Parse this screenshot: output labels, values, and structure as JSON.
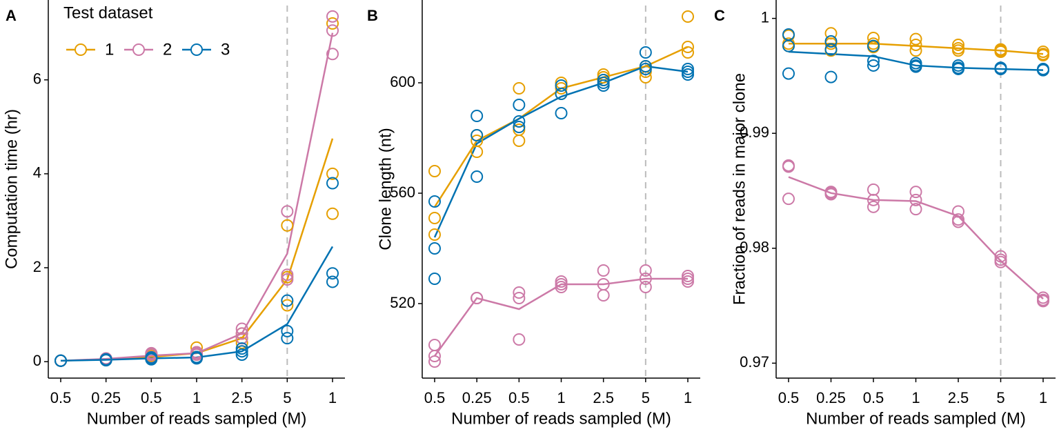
{
  "chart_data": [
    {
      "type": "line",
      "panel_label": "A",
      "legend_title": "Test dataset",
      "categories": [
        "0.5",
        "0.25",
        "0.5",
        "1",
        "2.5",
        "5",
        "1"
      ],
      "xlabel": "Number of reads sampled (M)",
      "ylabel": "Computation time (hr)",
      "ylim": [
        -0.35,
        7.7
      ],
      "yticks": [
        0,
        2,
        4,
        6
      ],
      "vline_index": 5,
      "series": [
        {
          "name": "1",
          "color": "#E69F00",
          "values": [
            0.02,
            0.05,
            0.1,
            0.18,
            0.5,
            1.75,
            4.75
          ],
          "points": [
            [
              0.02,
              0.02,
              0.02
            ],
            [
              0.05,
              0.05,
              0.06
            ],
            [
              0.08,
              0.12,
              0.17
            ],
            [
              0.15,
              0.2,
              0.3
            ],
            [
              0.4,
              0.5,
              0.6
            ],
            [
              1.2,
              1.8,
              2.9
            ],
            [
              3.15,
              4.0,
              7.2
            ]
          ]
        },
        {
          "name": "2",
          "color": "#CC79A7",
          "values": [
            0.02,
            0.06,
            0.13,
            0.18,
            0.6,
            2.3,
            7.0
          ],
          "points": [
            [
              0.02,
              0.02,
              0.02
            ],
            [
              0.05,
              0.06,
              0.07
            ],
            [
              0.1,
              0.15,
              0.18
            ],
            [
              0.15,
              0.18,
              0.2
            ],
            [
              0.5,
              0.6,
              0.7
            ],
            [
              1.75,
              1.85,
              3.2
            ],
            [
              6.55,
              7.05,
              7.35
            ]
          ]
        },
        {
          "name": "3",
          "color": "#0072B2",
          "values": [
            0.02,
            0.04,
            0.07,
            0.09,
            0.22,
            0.8,
            2.45
          ],
          "points": [
            [
              0.02,
              0.02,
              0.02
            ],
            [
              0.03,
              0.04,
              0.05
            ],
            [
              0.05,
              0.07,
              0.09
            ],
            [
              0.07,
              0.09,
              0.1
            ],
            [
              0.15,
              0.22,
              0.28
            ],
            [
              0.5,
              0.65,
              1.3
            ],
            [
              1.7,
              1.88,
              3.8
            ]
          ]
        }
      ]
    },
    {
      "type": "line",
      "panel_label": "B",
      "categories": [
        "0.5",
        "0.25",
        "0.5",
        "1",
        "2.5",
        "5",
        "1"
      ],
      "xlabel": "Number of reads sampled (M)",
      "ylabel": "Clone length (nt)",
      "ylim": [
        493,
        630
      ],
      "yticks": [
        520,
        560,
        600
      ],
      "vline_index": 5,
      "series": [
        {
          "color": "#E69F00",
          "values": [
            555,
            579,
            587,
            598,
            602,
            606,
            613
          ],
          "points": [
            [
              545,
              551,
              568
            ],
            [
              575,
              579,
              581
            ],
            [
              579,
              583,
              598
            ],
            [
              596,
              598,
              600
            ],
            [
              601,
              602,
              603
            ],
            [
              602,
              604,
              606
            ],
            [
              611,
              613,
              624
            ]
          ]
        },
        {
          "color": "#CC79A7",
          "values": [
            501,
            522,
            518,
            527,
            527,
            529,
            529
          ],
          "points": [
            [
              499,
              501,
              505
            ],
            [
              522,
              522,
              522
            ],
            [
              507,
              522,
              524
            ],
            [
              526,
              527,
              528
            ],
            [
              523,
              527,
              532
            ],
            [
              526,
              529,
              532
            ],
            [
              528,
              529,
              530
            ]
          ]
        },
        {
          "color": "#0072B2",
          "values": [
            544,
            578,
            587,
            595,
            600,
            606,
            604
          ],
          "points": [
            [
              529,
              540,
              557
            ],
            [
              566,
              581,
              588
            ],
            [
              584,
              586,
              592
            ],
            [
              589,
              596,
              599
            ],
            [
              599,
              600,
              601
            ],
            [
              605,
              606,
              611
            ],
            [
              603,
              604,
              605
            ]
          ]
        }
      ]
    },
    {
      "type": "line",
      "panel_label": "C",
      "categories": [
        "0.5",
        "0.25",
        "0.5",
        "1",
        "2.5",
        "5",
        "1"
      ],
      "xlabel": "Number of reads sampled (M)",
      "ylabel": "Fraction of reads in major clone",
      "ylim": [
        0.9687,
        1.0016
      ],
      "yticks": [
        0.97,
        0.98,
        0.99,
        1
      ],
      "vline_index": 5,
      "series": [
        {
          "color": "#E69F00",
          "values": [
            0.9978,
            0.9978,
            0.9978,
            0.9976,
            0.9974,
            0.9972,
            0.9969
          ],
          "points": [
            [
              0.9976,
              0.9978,
              0.9985
            ],
            [
              0.9972,
              0.9978,
              0.9987
            ],
            [
              0.9975,
              0.9978,
              0.9983
            ],
            [
              0.9972,
              0.9977,
              0.9982
            ],
            [
              0.9972,
              0.9974,
              0.9977
            ],
            [
              0.9971,
              0.9972,
              0.9973
            ],
            [
              0.9968,
              0.9969,
              0.9971
            ]
          ]
        },
        {
          "color": "#0072B2",
          "values": [
            0.9971,
            0.9969,
            0.9967,
            0.9959,
            0.9957,
            0.9956,
            0.9955
          ],
          "points": [
            [
              0.9952,
              0.9976,
              0.9986
            ],
            [
              0.9949,
              0.9973,
              0.998
            ],
            [
              0.9959,
              0.9963,
              0.9976
            ],
            [
              0.9958,
              0.9959,
              0.9961
            ],
            [
              0.9956,
              0.9957,
              0.9959
            ],
            [
              0.9956,
              0.9956,
              0.9957
            ],
            [
              0.9955,
              0.9955,
              0.9956
            ]
          ]
        },
        {
          "color": "#CC79A7",
          "values": [
            0.9862,
            0.9848,
            0.9842,
            0.9841,
            0.9828,
            0.9789,
            0.9756
          ],
          "points": [
            [
              0.9843,
              0.9871,
              0.9872
            ],
            [
              0.9847,
              0.9848,
              0.9849
            ],
            [
              0.9836,
              0.9842,
              0.9851
            ],
            [
              0.9834,
              0.9842,
              0.9849
            ],
            [
              0.9823,
              0.9825,
              0.9832
            ],
            [
              0.9788,
              0.979,
              0.9793
            ],
            [
              0.9754,
              0.9755,
              0.9757
            ]
          ]
        }
      ]
    }
  ]
}
